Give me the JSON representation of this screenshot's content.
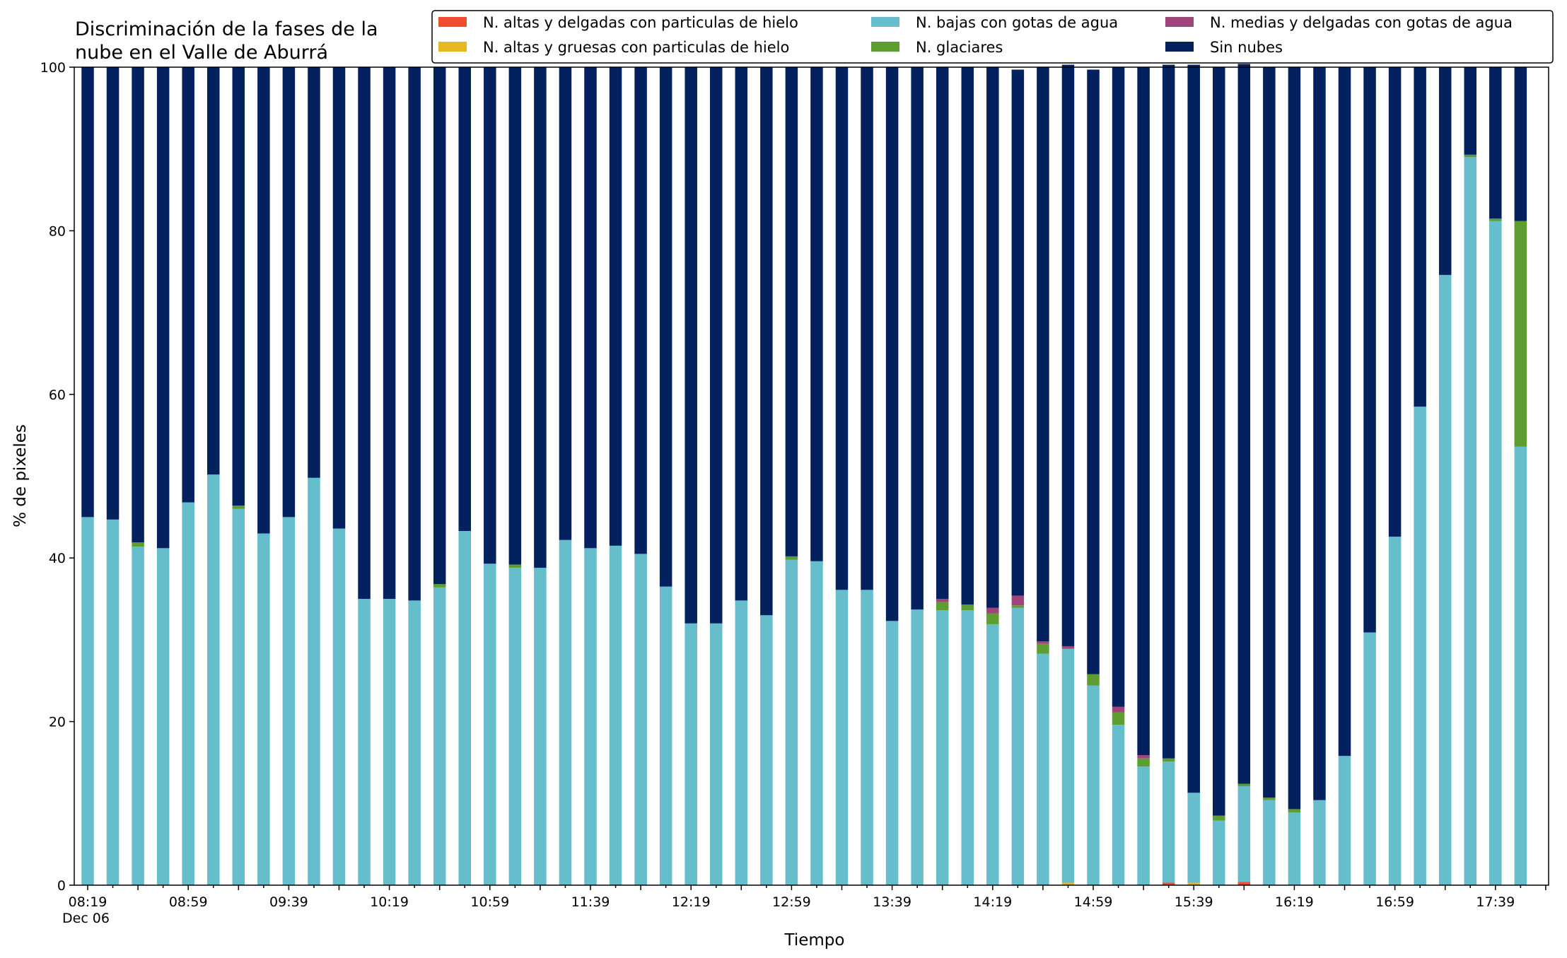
{
  "chart_data": {
    "type": "bar",
    "stacked": true,
    "title_lines": [
      "Discriminación de la fases de la",
      "nube en el Valle de Aburrá"
    ],
    "xlabel": "Tiempo",
    "ylabel": "% de pixeles",
    "ylim": [
      0,
      100
    ],
    "yticks": [
      "0",
      "20",
      "40",
      "60",
      "80",
      "100"
    ],
    "grid": false,
    "legend_position": "top-right",
    "xtick_labels": [
      "08:19",
      "08:59",
      "09:39",
      "10:19",
      "10:59",
      "11:39",
      "12:19",
      "12:59",
      "13:39",
      "14:19",
      "14:59",
      "15:39",
      "16:19",
      "16:59",
      "17:39"
    ],
    "xtick_date": "Dec 06",
    "bar_count": 58,
    "series": [
      {
        "name": "N. altas y delgadas con particulas de hielo",
        "color": "#ee4d2e",
        "values": [
          0,
          0,
          0,
          0,
          0,
          0,
          0,
          0,
          0,
          0,
          0,
          0,
          0,
          0,
          0,
          0,
          0,
          0,
          0,
          0,
          0,
          0,
          0,
          0,
          0,
          0,
          0,
          0,
          0,
          0,
          0,
          0,
          0,
          0,
          0,
          0,
          0,
          0,
          0,
          0,
          0,
          0,
          0,
          0.3,
          0,
          0,
          0.4,
          0,
          0,
          0,
          0,
          0,
          0,
          0,
          0,
          0,
          0,
          0
        ]
      },
      {
        "name": "N. altas y gruesas con particulas de hielo",
        "color": "#e8b821",
        "values": [
          0,
          0,
          0,
          0,
          0,
          0,
          0,
          0,
          0,
          0,
          0,
          0,
          0,
          0,
          0,
          0,
          0,
          0,
          0,
          0,
          0,
          0,
          0,
          0,
          0,
          0,
          0,
          0,
          0,
          0,
          0,
          0,
          0,
          0,
          0,
          0,
          0,
          0,
          0,
          0.3,
          0,
          0,
          0,
          0,
          0.3,
          0,
          0,
          0,
          0,
          0,
          0,
          0,
          0,
          0,
          0,
          0,
          0,
          0
        ]
      },
      {
        "name": "N. bajas con gotas de agua",
        "color": "#66bdcb",
        "values": [
          45,
          44.7,
          41.4,
          41.2,
          46.8,
          50.2,
          46,
          43,
          45,
          49.8,
          43.6,
          35,
          35,
          34.8,
          36.4,
          43.3,
          39.3,
          38.8,
          38.8,
          42.2,
          41.2,
          41.5,
          40.5,
          36.5,
          32,
          32,
          34.8,
          33,
          39.8,
          39.6,
          36.1,
          36.1,
          32.3,
          33.7,
          33.6,
          33.6,
          31.9,
          33.9,
          28.3,
          28.6,
          24.4,
          19.6,
          14.5,
          14.8,
          11,
          7.9,
          11.7,
          10.4,
          8.9,
          10.4,
          15.8,
          30.9,
          42.6,
          58.5,
          74.6,
          89,
          81.2,
          53.6
        ]
      },
      {
        "name": "N. glaciares",
        "color": "#5e9e30",
        "values": [
          0,
          0,
          0.5,
          0,
          0,
          0,
          0.4,
          0,
          0,
          0,
          0,
          0,
          0,
          0,
          0.4,
          0,
          0,
          0.4,
          0,
          0,
          0,
          0,
          0,
          0,
          0,
          0,
          0,
          0,
          0.4,
          0,
          0,
          0,
          0,
          0,
          1,
          0.7,
          1.3,
          0.3,
          1.2,
          0,
          1.4,
          1.5,
          1,
          0.4,
          0,
          0.6,
          0.3,
          0.3,
          0.4,
          0,
          0,
          0,
          0,
          0,
          0,
          0.3,
          0.3,
          27.6
        ]
      },
      {
        "name": "N. medias y delgadas con gotas de agua",
        "color": "#a0457b",
        "values": [
          0,
          0,
          0,
          0,
          0,
          0,
          0,
          0,
          0,
          0,
          0,
          0,
          0,
          0,
          0,
          0,
          0,
          0,
          0,
          0,
          0,
          0,
          0,
          0,
          0,
          0,
          0,
          0,
          0,
          0,
          0,
          0,
          0,
          0,
          0.4,
          0,
          0.7,
          1.2,
          0.3,
          0.3,
          0,
          0.7,
          0.4,
          0,
          0,
          0,
          0,
          0,
          0,
          0,
          0,
          0,
          0,
          0,
          0,
          0,
          0,
          0
        ]
      },
      {
        "name": "Sin nubes",
        "color": "#03205f",
        "values": [
          55,
          55.3,
          58.1,
          58.8,
          53.2,
          49.8,
          53.6,
          57,
          55,
          50.2,
          56.4,
          65,
          65,
          65.2,
          63.2,
          56.7,
          60.7,
          60.8,
          61.2,
          57.8,
          58.8,
          58.5,
          59.5,
          63.5,
          68,
          68,
          65.2,
          67,
          59.8,
          60.4,
          63.9,
          63.9,
          67.7,
          66.3,
          65,
          65.7,
          66.1,
          64.3,
          70.2,
          71.1,
          73.9,
          78.2,
          84.1,
          84.8,
          89,
          91.5,
          88,
          89.3,
          90.7,
          89.6,
          84.2,
          69.1,
          57.4,
          41.5,
          25.4,
          10.7,
          18.5,
          18.8
        ]
      }
    ]
  }
}
